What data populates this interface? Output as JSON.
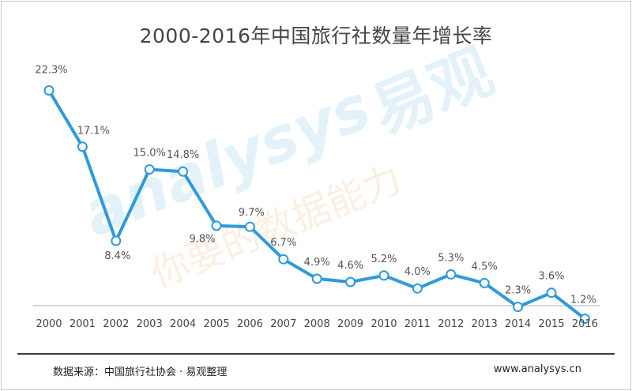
{
  "chart_data": {
    "type": "line",
    "title": "2000-2016年中国旅行社数量年增长率",
    "x": [
      "2000",
      "2001",
      "2002",
      "2003",
      "2004",
      "2005",
      "2006",
      "2007",
      "2008",
      "2009",
      "2010",
      "2011",
      "2012",
      "2013",
      "2014",
      "2015",
      "2016"
    ],
    "series": [
      {
        "values": [
          22.3,
          17.1,
          8.4,
          15.0,
          14.8,
          9.8,
          9.7,
          6.7,
          4.9,
          4.6,
          5.2,
          4.0,
          5.3,
          4.5,
          2.3,
          3.6,
          1.2
        ],
        "labels": [
          "22.3%",
          "17.1%",
          "8.4%",
          "15.0%",
          "14.8%",
          "9.8%",
          "9.7%",
          "6.7%",
          "4.9%",
          "4.6%",
          "5.2%",
          "4.0%",
          "5.3%",
          "4.5%",
          "2.3%",
          "3.6%",
          "1.2%"
        ]
      }
    ],
    "xlabel": "",
    "ylabel": "",
    "ylim": [
      0,
      24
    ],
    "grid": false,
    "line_color": "#2f9ad9",
    "marker_fill": "#ffffff"
  },
  "footer": {
    "source": "数据来源：中国旅行社协会 · 易观整理",
    "site": "www.analysys.cn"
  },
  "watermark": {
    "brand_latin": "analysys",
    "brand_cn": "易观",
    "slogan": "你要的数据能力"
  }
}
